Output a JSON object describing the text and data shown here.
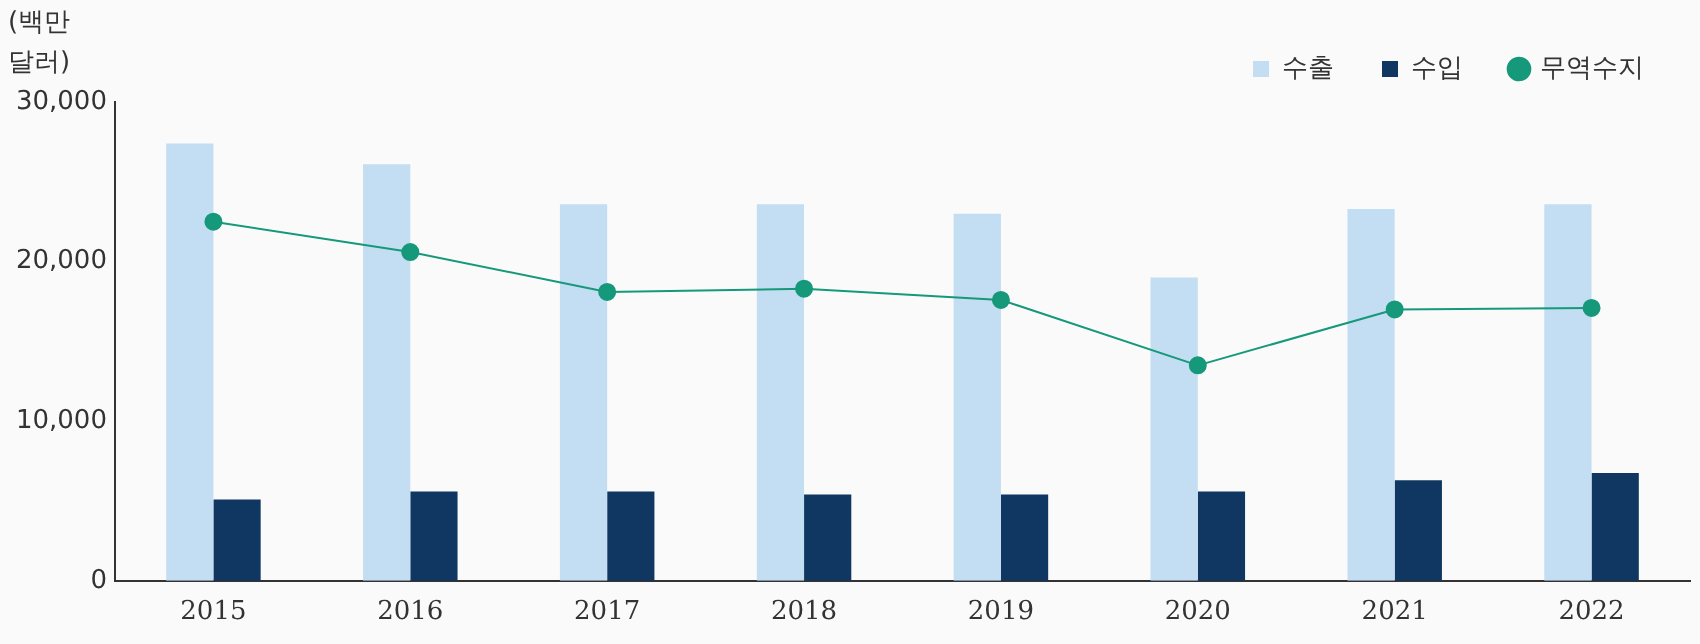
{
  "chart_data": {
    "type": "bar",
    "ylabel": "(백만\n달러)",
    "categories": [
      "2015",
      "2016",
      "2017",
      "2018",
      "2019",
      "2020",
      "2021",
      "2022"
    ],
    "series": [
      {
        "name": "수출",
        "color": "#c3ddf2",
        "values": [
          27400,
          26100,
          23600,
          23600,
          23000,
          19000,
          23300,
          23600
        ]
      },
      {
        "name": "수입",
        "color": "#0f3761",
        "values": [
          5100,
          5600,
          5600,
          5400,
          5400,
          5600,
          6300,
          6750
        ]
      },
      {
        "name": "무역수지",
        "type": "line",
        "color": "#16987a",
        "values": [
          22500,
          20600,
          18100,
          18300,
          17600,
          13500,
          17000,
          17100
        ]
      }
    ],
    "ylim": [
      0,
      30000
    ],
    "yticks": [
      0,
      {
        "value": 10000,
        "label": "10,000"
      },
      {
        "value": 20000,
        "label": "20,000"
      },
      {
        "value": 30000,
        "label": "30,000"
      }
    ],
    "grid": false,
    "legend": "top right",
    "marker": "circle"
  }
}
